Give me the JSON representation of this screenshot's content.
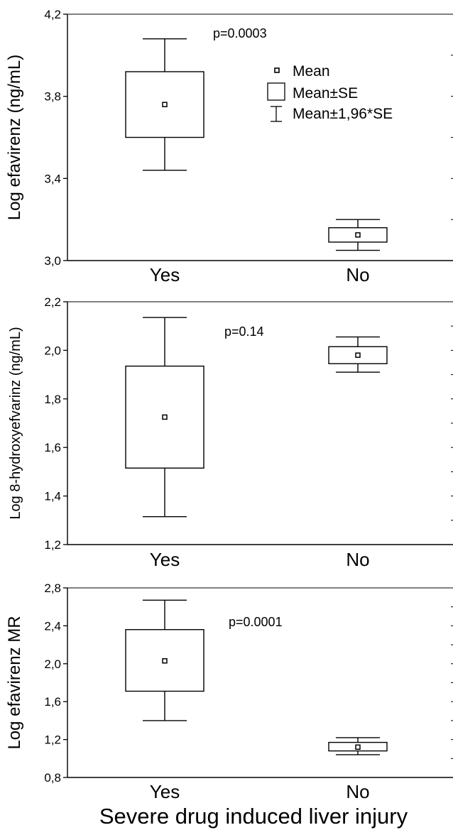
{
  "x_axis_title": "Severe drug induced liver injury",
  "legend": {
    "mean": "Mean",
    "se": "Mean±SE",
    "ci": "Mean±1,96*SE"
  },
  "chart_data": [
    {
      "type": "box",
      "ylabel": "Log efavirenz (ng/mL)",
      "ylim": [
        3.0,
        4.2
      ],
      "yticks": [
        "3,0",
        "3,4",
        "3,8",
        "4,2"
      ],
      "ytick_values": [
        3.0,
        3.4,
        3.8,
        4.2
      ],
      "categories": [
        "Yes",
        "No"
      ],
      "annotation": "p=0.0003",
      "series": [
        {
          "category": "Yes",
          "mean": 3.76,
          "se_low": 3.6,
          "se_high": 3.92,
          "ci_low": 3.44,
          "ci_high": 4.08
        },
        {
          "category": "No",
          "mean": 3.125,
          "se_low": 3.09,
          "se_high": 3.16,
          "ci_low": 3.05,
          "ci_high": 3.2
        }
      ]
    },
    {
      "type": "box",
      "ylabel": "Log 8-hydroxyefvarinz (ng/mL)",
      "ylim": [
        1.2,
        2.2
      ],
      "yticks": [
        "1,2",
        "1,4",
        "1,6",
        "1,8",
        "2,0",
        "2,2"
      ],
      "ytick_values": [
        1.2,
        1.4,
        1.6,
        1.8,
        2.0,
        2.2
      ],
      "categories": [
        "Yes",
        "No"
      ],
      "annotation": "p=0.14",
      "series": [
        {
          "category": "Yes",
          "mean": 1.725,
          "se_low": 1.515,
          "se_high": 1.935,
          "ci_low": 1.315,
          "ci_high": 2.135
        },
        {
          "category": "No",
          "mean": 1.98,
          "se_low": 1.945,
          "se_high": 2.015,
          "ci_low": 1.91,
          "ci_high": 2.055
        }
      ]
    },
    {
      "type": "box",
      "ylabel": "Log efavirenz MR",
      "ylim": [
        0.8,
        2.8
      ],
      "yticks": [
        "0,8",
        "1,2",
        "1,6",
        "2,0",
        "2,4",
        "2,8"
      ],
      "ytick_values": [
        0.8,
        1.2,
        1.6,
        2.0,
        2.4,
        2.8
      ],
      "categories": [
        "Yes",
        "No"
      ],
      "annotation": "p=0.0001",
      "series": [
        {
          "category": "Yes",
          "mean": 2.03,
          "se_low": 1.71,
          "se_high": 2.36,
          "ci_low": 1.4,
          "ci_high": 2.67
        },
        {
          "category": "No",
          "mean": 1.12,
          "se_low": 1.08,
          "se_high": 1.17,
          "ci_low": 1.04,
          "ci_high": 1.22
        }
      ]
    }
  ]
}
